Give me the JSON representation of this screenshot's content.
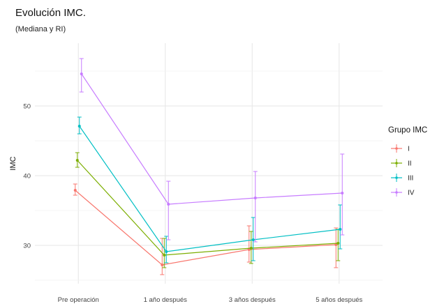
{
  "chart_data": {
    "type": "line",
    "title": "Evolución IMC.",
    "subtitle": "(Mediana y RI)",
    "xlabel": "",
    "ylabel": "IMC",
    "categories": [
      "Pre operación",
      "1 año después",
      "3 años después",
      "5 años después"
    ],
    "y_ticks": [
      30,
      40,
      50
    ],
    "ylim": [
      24.5,
      59
    ],
    "grid": true,
    "legend": {
      "title": "Grupo IMC",
      "position": "right"
    },
    "series": [
      {
        "name": "I",
        "color": "#F8766D",
        "values": [
          37.9,
          27.2,
          29.4,
          30.1
        ],
        "low": [
          37.2,
          25.8,
          27.6,
          26.8
        ],
        "high": [
          38.8,
          31.0,
          32.8,
          32.5
        ]
      },
      {
        "name": "II",
        "color": "#7CAE00",
        "values": [
          42.2,
          28.6,
          29.6,
          30.3
        ],
        "low": [
          41.2,
          26.8,
          27.4,
          27.8
        ],
        "high": [
          43.3,
          31.0,
          32.0,
          32.3
        ]
      },
      {
        "name": "III",
        "color": "#00BFC4",
        "values": [
          47.1,
          29.1,
          30.8,
          32.3
        ],
        "low": [
          46.0,
          27.5,
          27.8,
          29.5
        ],
        "high": [
          48.4,
          31.3,
          34.0,
          35.8
        ]
      },
      {
        "name": "IV",
        "color": "#C77CFF",
        "values": [
          54.6,
          35.9,
          36.8,
          37.5
        ],
        "low": [
          52.0,
          30.8,
          30.5,
          31.5
        ],
        "high": [
          56.8,
          39.2,
          40.6,
          43.1
        ]
      }
    ]
  }
}
